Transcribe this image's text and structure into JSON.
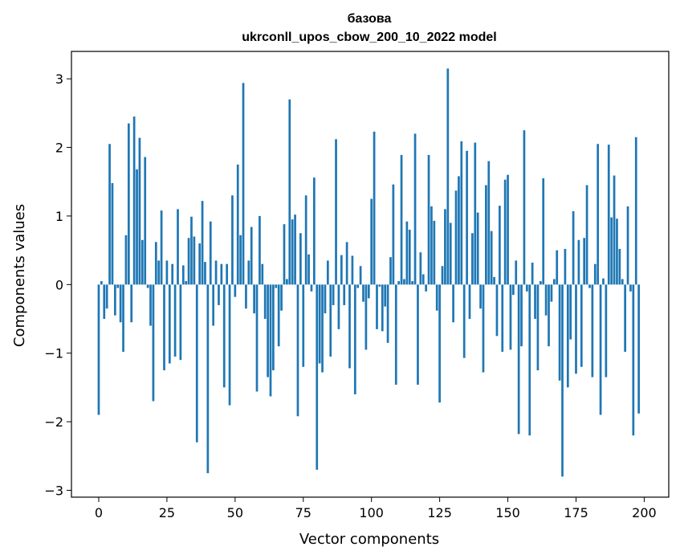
{
  "chart_data": {
    "type": "bar",
    "title_line1": "базова",
    "title_line2": "ukrconll_upos_cbow_200_10_2022 model",
    "xlabel": "Vector components",
    "ylabel": "Components values",
    "xlim": [
      -10,
      209
    ],
    "ylim": [
      -3.1,
      3.4
    ],
    "xticks": [
      0,
      25,
      50,
      75,
      100,
      125,
      150,
      175,
      200
    ],
    "xtick_labels": [
      "0",
      "25",
      "50",
      "75",
      "100",
      "125",
      "150",
      "175",
      "200"
    ],
    "yticks": [
      -3,
      -2,
      -1,
      0,
      1,
      2,
      3
    ],
    "ytick_labels": [
      "−3",
      "−2",
      "−1",
      "0",
      "1",
      "2",
      "3"
    ],
    "bar_color": "#1f77b4",
    "grid": false,
    "values": [
      -1.9,
      0.05,
      -0.5,
      -0.35,
      2.05,
      1.48,
      -0.45,
      -0.05,
      -0.55,
      -0.98,
      0.72,
      2.35,
      -0.55,
      2.45,
      1.68,
      2.14,
      0.65,
      1.86,
      -0.05,
      -0.6,
      -1.7,
      0.62,
      0.35,
      1.08,
      -1.25,
      0.35,
      -1.15,
      0.3,
      -1.05,
      1.1,
      -1.1,
      0.28,
      0.05,
      0.68,
      0.99,
      0.7,
      -2.3,
      0.6,
      1.22,
      0.33,
      -2.75,
      0.92,
      -0.6,
      0.35,
      -0.3,
      0.3,
      -1.5,
      0.3,
      -1.76,
      1.3,
      -0.18,
      1.75,
      0.72,
      2.94,
      -0.35,
      0.35,
      0.84,
      -0.42,
      -1.56,
      1.0,
      0.3,
      -0.5,
      -1.35,
      -1.63,
      -1.25,
      -0.05,
      -0.9,
      -0.38,
      0.88,
      0.08,
      2.7,
      0.95,
      1.02,
      -1.92,
      0.75,
      -1.2,
      1.3,
      0.44,
      -0.1,
      1.56,
      -2.7,
      -1.15,
      -1.28,
      -0.42,
      0.35,
      -1.05,
      -0.3,
      2.12,
      -0.65,
      0.43,
      -0.3,
      0.62,
      -1.22,
      0.42,
      -1.6,
      -0.05,
      0.27,
      -0.25,
      -0.95,
      -0.2,
      1.25,
      2.23,
      -0.65,
      -0.03,
      -0.68,
      -0.32,
      -0.85,
      0.4,
      1.46,
      -1.46,
      0.05,
      1.89,
      0.08,
      0.92,
      0.8,
      0.05,
      2.2,
      -1.46,
      0.47,
      0.15,
      -0.1,
      1.89,
      1.14,
      0.93,
      -0.38,
      -1.72,
      0.27,
      1.1,
      3.15,
      0.9,
      -0.55,
      1.37,
      1.58,
      2.09,
      -1.07,
      1.95,
      -0.5,
      0.75,
      2.07,
      1.05,
      -0.35,
      -1.28,
      1.45,
      1.8,
      0.78,
      0.11,
      -0.75,
      1.15,
      -0.98,
      1.53,
      1.6,
      -0.95,
      -0.15,
      0.35,
      -2.18,
      -0.9,
      2.25,
      -0.1,
      -2.2,
      0.32,
      -0.5,
      -1.25,
      0.05,
      1.55,
      -0.45,
      -0.9,
      -0.25,
      0.08,
      0.5,
      -1.4,
      -2.8,
      0.52,
      -1.5,
      -0.8,
      1.07,
      -1.3,
      0.65,
      -1.2,
      0.68,
      1.45,
      -0.05,
      -1.35,
      0.3,
      2.05,
      -1.9,
      0.09,
      -1.35,
      2.04,
      0.98,
      1.59,
      0.96,
      0.52,
      0.08,
      -0.98,
      1.14,
      -0.1,
      -2.2,
      2.15,
      -1.88
    ]
  }
}
